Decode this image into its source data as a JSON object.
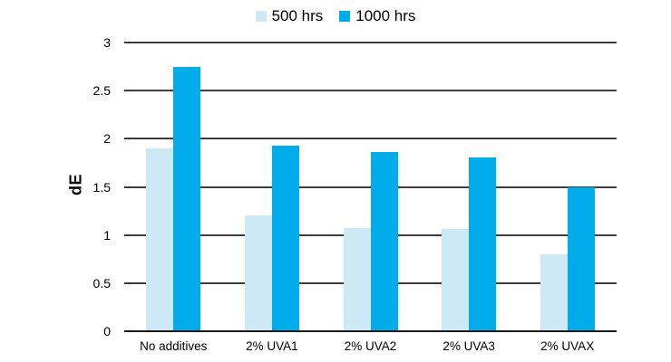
{
  "chart_data": {
    "type": "bar",
    "title": "",
    "categories": [
      "No additives",
      "2% UVA1",
      "2% UVA2",
      "2% UVA3",
      "2% UVAX"
    ],
    "series": [
      {
        "name": "500 hrs",
        "color": "#CDE9F5",
        "values": [
          1.9,
          1.2,
          1.07,
          1.06,
          0.8
        ]
      },
      {
        "name": "1000 hrs",
        "color": "#00ACE9",
        "values": [
          2.75,
          1.93,
          1.86,
          1.81,
          1.5
        ]
      }
    ],
    "xlabel": "",
    "ylabel": "dE",
    "ylim": [
      0,
      3
    ],
    "yticks": [
      0,
      0.5,
      1,
      1.5,
      2,
      2.5,
      3
    ],
    "grid": true,
    "gridline_color": "#3d3d3d",
    "axis_color": "#1a1a1a",
    "legend_position": "top-center",
    "background": "#ffffff"
  }
}
